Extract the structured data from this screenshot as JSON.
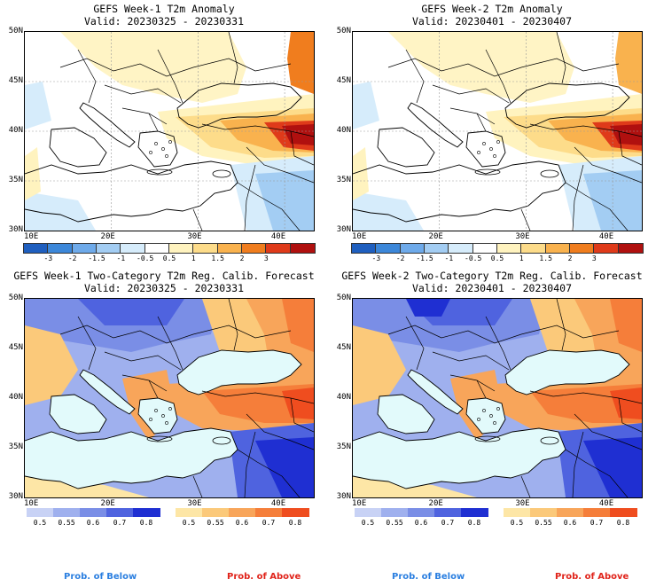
{
  "panels": [
    {
      "id": "p1",
      "title_line1": "GEFS Week-1 T2m Anomaly",
      "title_line2": "Valid: 20230325 - 20230331",
      "kind": "anomaly"
    },
    {
      "id": "p2",
      "title_line1": "GEFS Week-2 T2m Anomaly",
      "title_line2": "Valid: 20230401 - 20230407",
      "kind": "anomaly"
    },
    {
      "id": "p3",
      "title_line1": "GEFS Week-1 Two-Category T2m Reg. Calib. Forecast",
      "title_line2": "Valid: 20230325 - 20230331",
      "kind": "prob"
    },
    {
      "id": "p4",
      "title_line1": "GEFS Week-2 Two-Category T2m Reg. Calib. Forecast",
      "title_line2": "Valid: 20230401 - 20230407",
      "kind": "prob"
    }
  ],
  "lat_labels": [
    "50N",
    "45N",
    "40N",
    "35N",
    "30N"
  ],
  "lon_labels": [
    "10E",
    "20E",
    "30E",
    "40E"
  ],
  "anomaly_colorbar": {
    "ticks": [
      "-3",
      "-2",
      "-1.5",
      "-1",
      "-0.5",
      "0.5",
      "1",
      "1.5",
      "2",
      "3"
    ],
    "colors": [
      "#1f5fbf",
      "#3c87d9",
      "#6eaaea",
      "#a3cdf3",
      "#d6ecfb",
      "#ffffff",
      "#fff3bf",
      "#fddc8a",
      "#f9b24e",
      "#f07d1e",
      "#df3a1a",
      "#b0100f"
    ]
  },
  "prob_below": {
    "ticks": [
      "0.5",
      "0.55",
      "0.6",
      "0.7",
      "0.8"
    ],
    "colors": [
      "#c8d2f5",
      "#9fb0ee",
      "#7a8ee6",
      "#4f63df",
      "#1f2fd2"
    ],
    "label": "Prob. of Below"
  },
  "prob_above": {
    "ticks": [
      "0.5",
      "0.55",
      "0.6",
      "0.7",
      "0.8"
    ],
    "colors": [
      "#fde6a6",
      "#fbc97a",
      "#f8a55a",
      "#f57e3a",
      "#ef4d1f"
    ],
    "label": "Prob. of Above"
  },
  "colors": {
    "sea": "#e2fafb",
    "below_label": "#2b7fe0",
    "above_label": "#e0231a"
  }
}
